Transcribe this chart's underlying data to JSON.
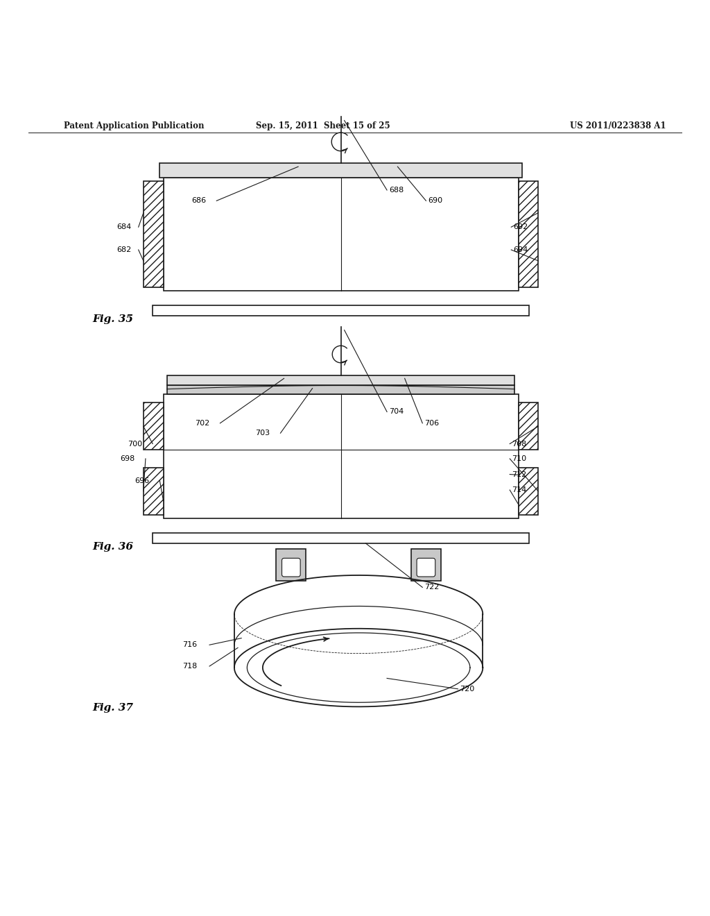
{
  "bg_color": "#ffffff",
  "header_left": "Patent Application Publication",
  "header_mid": "Sep. 15, 2011  Sheet 15 of 25",
  "header_right": "US 2011/0223838 A1",
  "fig35_label": "Fig. 35",
  "fig36_label": "Fig. 36",
  "fig37_label": "Fig. 37",
  "line_color": "#1a1a1a",
  "label_color": "#1a1a1a"
}
